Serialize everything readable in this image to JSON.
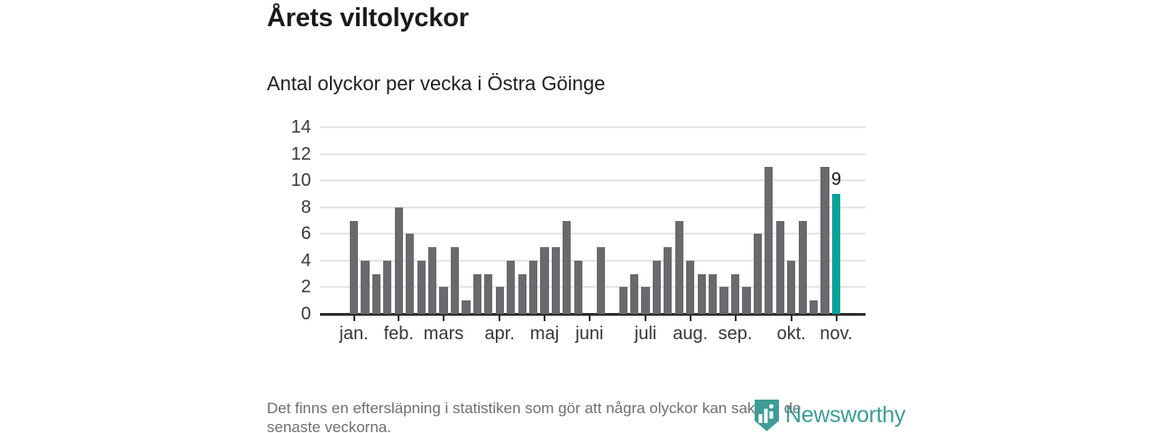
{
  "title": "Årets viltolyckor",
  "subtitle": "Antal olyckor per vecka i Östra Göinge",
  "chart_data": {
    "type": "bar",
    "title": "Årets viltolyckor",
    "subtitle": "Antal olyckor per vecka i Östra Göinge",
    "x_unit": "week",
    "first_week": 1,
    "values": [
      7,
      4,
      3,
      4,
      8,
      6,
      4,
      5,
      2,
      5,
      1,
      3,
      3,
      2,
      4,
      3,
      4,
      5,
      5,
      7,
      4,
      0,
      5,
      0,
      2,
      3,
      2,
      4,
      5,
      7,
      4,
      3,
      3,
      2,
      3,
      2,
      6,
      11,
      7,
      4,
      7,
      1,
      11,
      9
    ],
    "months": [
      {
        "label": "jan.",
        "week": 1
      },
      {
        "label": "feb.",
        "week": 5
      },
      {
        "label": "mars",
        "week": 9
      },
      {
        "label": "apr.",
        "week": 14
      },
      {
        "label": "maj",
        "week": 18
      },
      {
        "label": "juni",
        "week": 22
      },
      {
        "label": "juli",
        "week": 27
      },
      {
        "label": "aug.",
        "week": 31
      },
      {
        "label": "sep.",
        "week": 35
      },
      {
        "label": "okt.",
        "week": 40
      },
      {
        "label": "nov.",
        "week": 44
      }
    ],
    "yticks": [
      0,
      2,
      4,
      6,
      8,
      10,
      12,
      14
    ],
    "ylim": [
      0,
      14
    ],
    "grid": true,
    "legend": "none",
    "bar_color": "#6a6a6e",
    "highlight_color": "#00a49b",
    "last_value_label": "9"
  },
  "footer": {
    "lines": [
      "Det finns en eftersläpning i statistiken som gör att några olyckor kan saknas de",
      "senaste veckorna."
    ],
    "brand": "Newsworthy"
  },
  "logo_color": "#3f9c96"
}
